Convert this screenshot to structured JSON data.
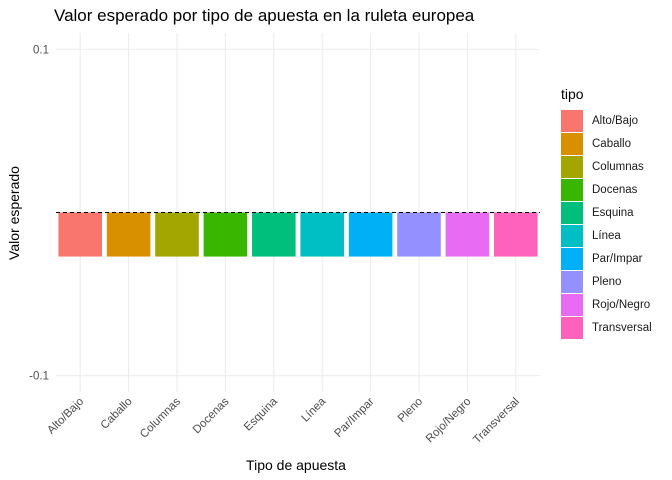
{
  "chart_data": {
    "type": "bar",
    "title": "Valor esperado por tipo de apuesta en la ruleta europea",
    "xlabel": "Tipo de apuesta",
    "ylabel": "Valor esperado",
    "categories": [
      "Alto/Bajo",
      "Caballo",
      "Columnas",
      "Docenas",
      "Esquina",
      "Línea",
      "Par/Impar",
      "Pleno",
      "Rojo/Negro",
      "Transversal"
    ],
    "values": [
      -0.027,
      -0.027,
      -0.027,
      -0.027,
      -0.027,
      -0.027,
      -0.027,
      -0.027,
      -0.027,
      -0.027
    ],
    "colors": [
      "#F8766D",
      "#D89000",
      "#A3A500",
      "#39B600",
      "#00BF7D",
      "#00BFC4",
      "#00B0F6",
      "#9590FF",
      "#E76BF3",
      "#FF62BC"
    ],
    "ylim": [
      -0.11,
      0.11
    ],
    "yticks": [
      0.1,
      -0.1
    ],
    "ytick_labels": [
      "0.1",
      "-0.1"
    ],
    "reference_line": 0,
    "grid": true,
    "legend": {
      "title": "tipo",
      "placement": "right",
      "entries": [
        "Alto/Bajo",
        "Caballo",
        "Columnas",
        "Docenas",
        "Esquina",
        "Línea",
        "Par/Impar",
        "Pleno",
        "Rojo/Negro",
        "Transversal"
      ]
    }
  }
}
